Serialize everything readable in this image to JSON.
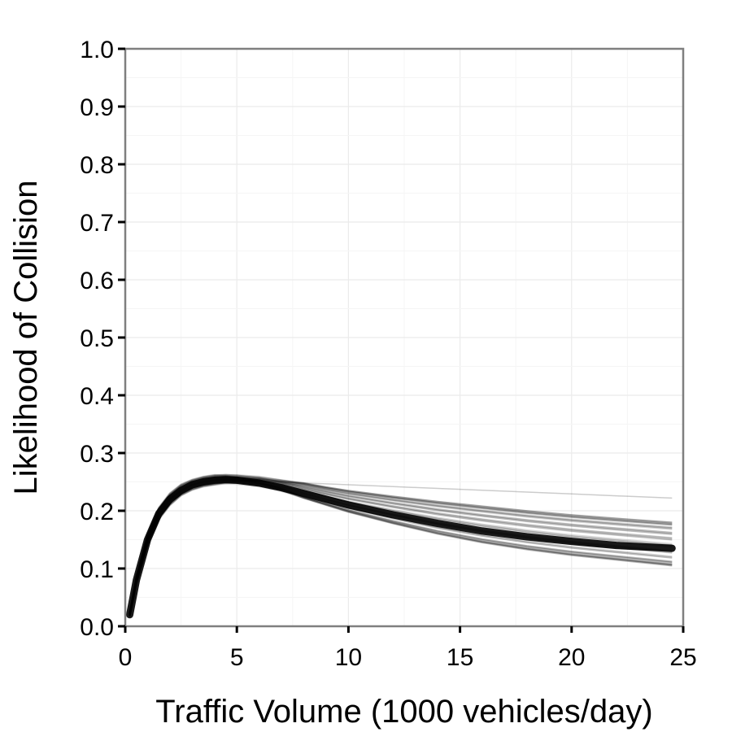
{
  "chart_data": {
    "type": "line",
    "title": "",
    "xlabel": "Traffic Volume (1000 vehicles/day)",
    "ylabel": "Likelihood of Collision",
    "xlim": [
      0,
      25
    ],
    "ylim": [
      0,
      1
    ],
    "x_ticks": [
      "0",
      "5",
      "10",
      "15",
      "20",
      "25"
    ],
    "y_ticks": [
      "0.0",
      "0.1",
      "0.2",
      "0.3",
      "0.4",
      "0.5",
      "0.6",
      "0.7",
      "0.8",
      "0.9",
      "1.0"
    ],
    "grid": true,
    "line_color": "#000000",
    "line_opacity": 0.15,
    "series_count": 40,
    "x": [
      0.2,
      0.5,
      1,
      1.5,
      2,
      2.5,
      3,
      3.5,
      4,
      4.5,
      5,
      6,
      7,
      8,
      9,
      10,
      12,
      14,
      16,
      18,
      20,
      22,
      24.5
    ],
    "median_curve": [
      0.02,
      0.08,
      0.15,
      0.195,
      0.22,
      0.235,
      0.245,
      0.25,
      0.253,
      0.254,
      0.253,
      0.248,
      0.24,
      0.23,
      0.22,
      0.21,
      0.193,
      0.178,
      0.165,
      0.155,
      0.147,
      0.14,
      0.135
    ],
    "band_low": [
      0.015,
      0.07,
      0.135,
      0.18,
      0.205,
      0.222,
      0.232,
      0.238,
      0.241,
      0.243,
      0.243,
      0.24,
      0.233,
      0.222,
      0.21,
      0.198,
      0.178,
      0.16,
      0.145,
      0.133,
      0.123,
      0.115,
      0.105
    ],
    "band_high": [
      0.025,
      0.09,
      0.165,
      0.21,
      0.235,
      0.25,
      0.258,
      0.263,
      0.266,
      0.267,
      0.266,
      0.262,
      0.255,
      0.248,
      0.241,
      0.235,
      0.225,
      0.216,
      0.208,
      0.2,
      0.193,
      0.187,
      0.18
    ],
    "outlier_end": 0.222
  }
}
